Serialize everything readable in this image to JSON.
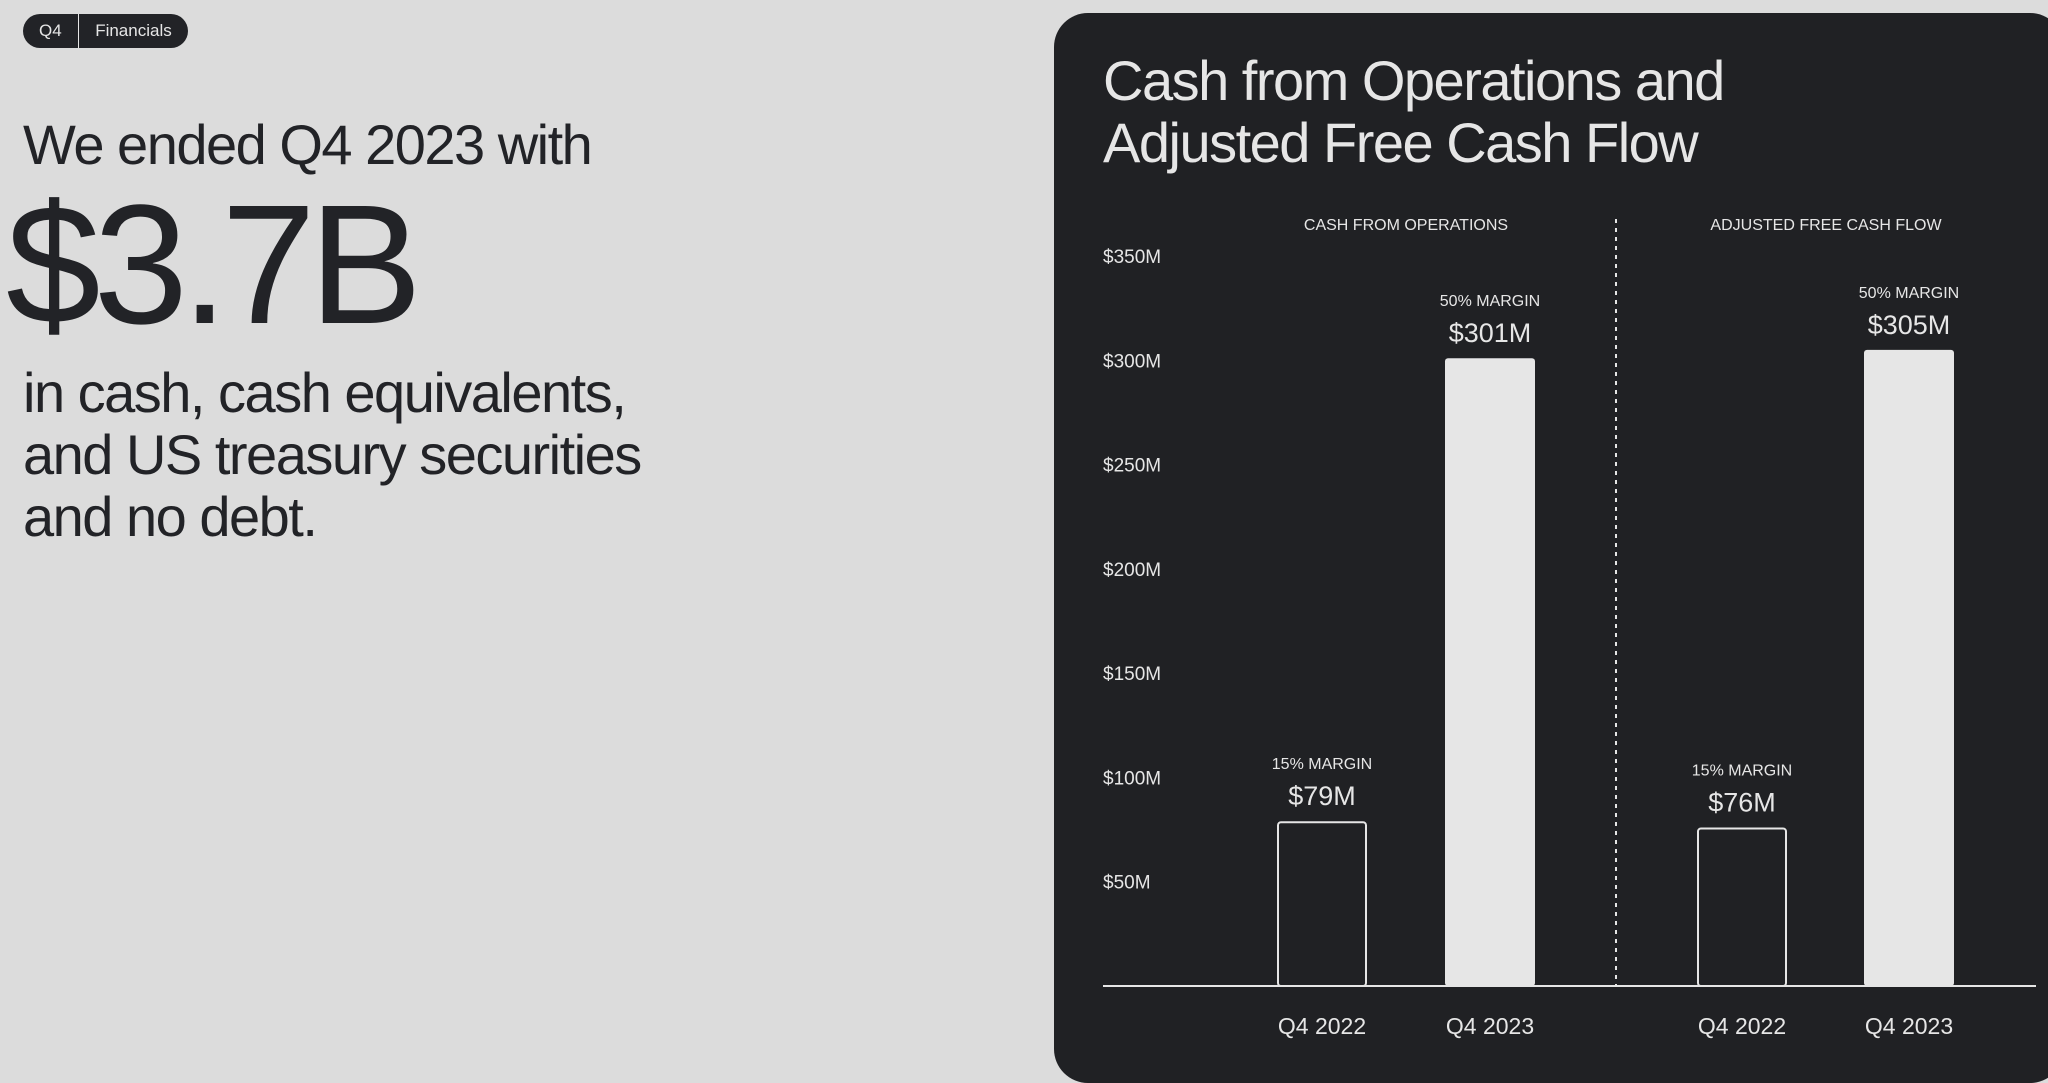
{
  "tag": {
    "left": "Q4",
    "right": "Financials"
  },
  "headline": {
    "intro": "We ended Q4 2023 with",
    "amount": "$3.7B",
    "description": "in cash, cash equivalents, and US treasury securities and no debt."
  },
  "colors": {
    "background": "#dcdcdc",
    "panel": "#202124",
    "text_dark": "#222327",
    "text_light": "#e6e6e6"
  },
  "chart_data": {
    "type": "bar",
    "title": "Cash from Operations and Adjusted Free Cash Flow",
    "ylim": [
      0,
      350
    ],
    "y_ticks": [
      {
        "value": 50,
        "label": "$50M"
      },
      {
        "value": 100,
        "label": "$100M"
      },
      {
        "value": 150,
        "label": "$150M"
      },
      {
        "value": 200,
        "label": "$200M"
      },
      {
        "value": 250,
        "label": "$250M"
      },
      {
        "value": 300,
        "label": "$300M"
      },
      {
        "value": 350,
        "label": "$350M"
      }
    ],
    "groups": [
      {
        "name": "CASH FROM OPERATIONS",
        "bars": [
          {
            "category": "Q4 2022",
            "value": 79,
            "label": "$79M",
            "margin": "15% MARGIN",
            "style": "outline"
          },
          {
            "category": "Q4 2023",
            "value": 301,
            "label": "$301M",
            "margin": "50% MARGIN",
            "style": "filled"
          }
        ]
      },
      {
        "name": "ADJUSTED FREE CASH FLOW",
        "bars": [
          {
            "category": "Q4 2022",
            "value": 76,
            "label": "$76M",
            "margin": "15% MARGIN",
            "style": "outline"
          },
          {
            "category": "Q4 2023",
            "value": 305,
            "label": "$305M",
            "margin": "50% MARGIN",
            "style": "filled"
          }
        ]
      }
    ]
  }
}
